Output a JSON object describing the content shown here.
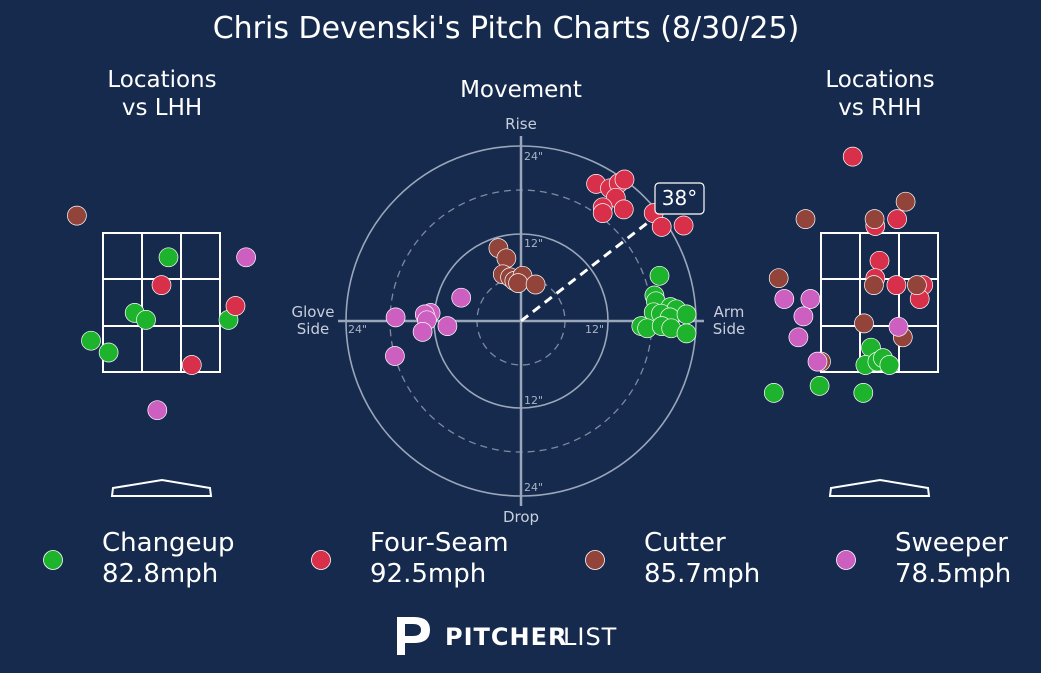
{
  "title": "Chris Devenski's Pitch Charts (8/30/25)",
  "panels": {
    "lhh_title_1": "Locations",
    "lhh_title_2": "vs LHH",
    "movement_title": "Movement",
    "rhh_title_1": "Locations",
    "rhh_title_2": "vs RHH"
  },
  "movement_axes": {
    "top": "Rise",
    "bottom": "Drop",
    "left_1": "Glove",
    "left_2": "Side",
    "right_1": "Arm",
    "right_2": "Side",
    "rings": [
      "24\"",
      "12\"",
      "12\"",
      "24\"",
      "24\"",
      "12\""
    ]
  },
  "arm_angle_label": "38°",
  "brand": {
    "bold": "PITCHER",
    "light": "LIST"
  },
  "colors": {
    "background": "#162a4d",
    "Changeup": "#1db32c",
    "Four-Seam": "#d8304a",
    "Cutter": "#93443a",
    "Sweeper": "#cc5fbf"
  },
  "chart_data": [
    {
      "type": "scatter",
      "panel": "Locations vs LHH",
      "zone": {
        "x_range": [
          -0.83,
          0.83
        ],
        "z_range": [
          1.5,
          3.5
        ]
      },
      "series": [
        {
          "name": "Changeup",
          "points": [
            [
              0.1,
              3.15
            ],
            [
              -0.38,
              2.35
            ],
            [
              -0.22,
              2.25
            ],
            [
              0.95,
              2.25
            ],
            [
              -1.0,
              1.95
            ],
            [
              -0.75,
              1.78
            ]
          ]
        },
        {
          "name": "Four-Seam",
          "points": [
            [
              0.0,
              2.75
            ],
            [
              1.05,
              2.45
            ],
            [
              0.43,
              1.6
            ]
          ]
        },
        {
          "name": "Cutter",
          "points": [
            [
              -1.2,
              3.75
            ]
          ]
        },
        {
          "name": "Sweeper",
          "points": [
            [
              1.2,
              3.15
            ],
            [
              -0.06,
              0.95
            ]
          ]
        }
      ]
    },
    {
      "type": "scatter",
      "panel": "Movement",
      "units": "inches",
      "series": [
        {
          "name": "Changeup",
          "points": [
            [
              19,
              6.2
            ],
            [
              18.3,
              3.5
            ],
            [
              18.5,
              2.7
            ],
            [
              20.5,
              1.9
            ],
            [
              21.3,
              1.6
            ],
            [
              18.2,
              1.2
            ],
            [
              19.2,
              1.0
            ],
            [
              20.4,
              0.5
            ],
            [
              22.7,
              0.9
            ],
            [
              16.5,
              -0.7
            ],
            [
              17.3,
              -1.0
            ],
            [
              19.3,
              -0.7
            ],
            [
              20.6,
              -1.0
            ],
            [
              22.7,
              -1.7
            ]
          ]
        },
        {
          "name": "Four-Seam",
          "points": [
            [
              10.3,
              18.8
            ],
            [
              12.2,
              18.2
            ],
            [
              13.4,
              18.9
            ],
            [
              14.2,
              19.4
            ],
            [
              13.0,
              16.9
            ],
            [
              11.2,
              15.6
            ],
            [
              11.2,
              14.8
            ],
            [
              14.1,
              15.3
            ],
            [
              18.2,
              14.8
            ],
            [
              19.3,
              12.9
            ],
            [
              22.3,
              13.1
            ]
          ]
        },
        {
          "name": "Cutter",
          "points": [
            [
              -3.1,
              10.0
            ],
            [
              -2.0,
              8.6
            ],
            [
              -2.5,
              6.4
            ],
            [
              -1.5,
              6.0
            ],
            [
              -0.9,
              5.5
            ],
            [
              0.2,
              6.2
            ],
            [
              -0.4,
              5.2
            ],
            [
              2.0,
              5.0
            ]
          ]
        },
        {
          "name": "Sweeper",
          "points": [
            [
              -8.2,
              3.2
            ],
            [
              -12.4,
              1.1
            ],
            [
              -13.2,
              0.9
            ],
            [
              -12.9,
              0.1
            ],
            [
              -17.2,
              0.5
            ],
            [
              -10.1,
              -0.7
            ],
            [
              -13.5,
              -1.5
            ],
            [
              -17.3,
              -4.8
            ]
          ]
        }
      ]
    },
    {
      "type": "scatter",
      "panel": "Locations vs RHH",
      "zone": {
        "x_range": [
          -0.83,
          0.83
        ],
        "z_range": [
          1.5,
          3.5
        ]
      },
      "series": [
        {
          "name": "Changeup",
          "points": [
            [
              -0.12,
              1.85
            ],
            [
              -0.2,
              1.6
            ],
            [
              -0.03,
              1.65
            ],
            [
              0.05,
              1.7
            ],
            [
              0.14,
              1.6
            ],
            [
              -0.85,
              1.3
            ],
            [
              -1.5,
              1.2
            ],
            [
              -0.23,
              1.2
            ]
          ]
        },
        {
          "name": "Four-Seam",
          "points": [
            [
              -0.38,
              4.6
            ],
            [
              0.25,
              3.7
            ],
            [
              -0.06,
              3.6
            ],
            [
              0.0,
              3.1
            ],
            [
              -0.06,
              2.85
            ],
            [
              0.24,
              2.75
            ],
            [
              0.62,
              2.75
            ],
            [
              0.57,
              2.55
            ]
          ]
        },
        {
          "name": "Cutter",
          "points": [
            [
              0.37,
              3.95
            ],
            [
              -0.07,
              3.7
            ],
            [
              -1.05,
              3.7
            ],
            [
              -1.43,
              2.85
            ],
            [
              -0.08,
              2.75
            ],
            [
              0.53,
              2.75
            ],
            [
              -0.22,
              2.2
            ],
            [
              0.33,
              2.0
            ],
            [
              -0.83,
              1.65
            ]
          ]
        },
        {
          "name": "Sweeper",
          "points": [
            [
              -1.35,
              2.55
            ],
            [
              -0.98,
              2.55
            ],
            [
              -1.08,
              2.3
            ],
            [
              -1.15,
              2.0
            ],
            [
              -0.88,
              1.65
            ],
            [
              0.27,
              2.15
            ]
          ]
        }
      ]
    }
  ],
  "legend": [
    {
      "name": "Changeup",
      "speed": "82.8mph"
    },
    {
      "name": "Four-Seam",
      "speed": "92.5mph"
    },
    {
      "name": "Cutter",
      "speed": "85.7mph"
    },
    {
      "name": "Sweeper",
      "speed": "78.5mph"
    }
  ]
}
